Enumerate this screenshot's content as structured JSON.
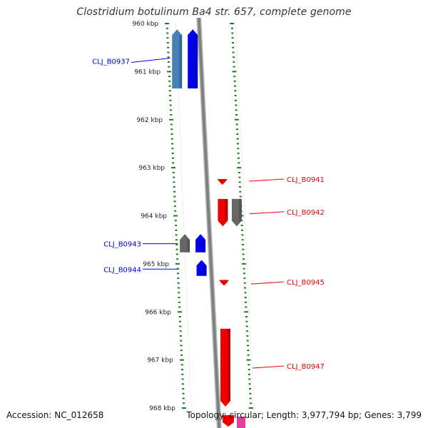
{
  "title": "Clostridium botulinum Ba4 str. 657, complete genome",
  "footer": {
    "accession": "Accession: NC_012658",
    "summary": "Topology: circular; Length: 3,977,794 bp; Genes: 3,799"
  },
  "colors": {
    "forward_gene": "#0000ee",
    "forward_gene_alt": "#4682b4",
    "reverse_gene": "#ee0000",
    "other_gene": "#666666",
    "backbone": "#808080",
    "tick": "#1a7a1a",
    "pink_gene": "#e0409c"
  },
  "genome_map": {
    "kbp_range": [
      960,
      968
    ],
    "scale_labels": [
      "960 kbp",
      "961 kbp",
      "962 kbp",
      "963 kbp",
      "964 kbp",
      "965 kbp",
      "966 kbp",
      "967 kbp",
      "968 kbp"
    ],
    "forward_genes": [
      {
        "start_kbp": 960.12,
        "end_kbp": 961.35,
        "color": "#4682b4",
        "lane": "outer"
      },
      {
        "start_kbp": 960.12,
        "end_kbp": 961.35,
        "color": "#0000ee",
        "lane": "inner"
      },
      {
        "start_kbp": 964.38,
        "end_kbp": 964.76,
        "color": "#666666",
        "lane": "outer"
      },
      {
        "start_kbp": 964.38,
        "end_kbp": 964.76,
        "color": "#0000ee",
        "lane": "inner"
      },
      {
        "start_kbp": 964.92,
        "end_kbp": 965.25,
        "color": "#0000ee",
        "lane": "inner"
      }
    ],
    "reverse_genes": [
      {
        "start_kbp": 963.24,
        "end_kbp": 963.35,
        "color": "#ee0000",
        "lane": "inner"
      },
      {
        "start_kbp": 963.65,
        "end_kbp": 964.22,
        "color": "#ee0000",
        "lane": "inner"
      },
      {
        "start_kbp": 963.65,
        "end_kbp": 964.22,
        "color": "#666666",
        "lane": "outer"
      },
      {
        "start_kbp": 965.34,
        "end_kbp": 965.45,
        "color": "#ee0000",
        "lane": "inner"
      },
      {
        "start_kbp": 966.35,
        "end_kbp": 967.97,
        "color": "#ee0000",
        "lane": "inner"
      }
    ],
    "left_labels": [
      {
        "text": "CLJ_B0937",
        "kbp": 960.78
      },
      {
        "text": "CLJ_B0943",
        "kbp": 964.58
      },
      {
        "text": "CLJ_B0944",
        "kbp": 965.11
      }
    ],
    "right_labels": [
      {
        "text": "CLJ_B0941",
        "kbp": 963.25
      },
      {
        "text": "CLJ_B0942",
        "kbp": 963.93
      },
      {
        "text": "CLJ_B0945",
        "kbp": 965.39
      },
      {
        "text": "CLJ_B0947",
        "kbp": 967.14
      }
    ]
  }
}
